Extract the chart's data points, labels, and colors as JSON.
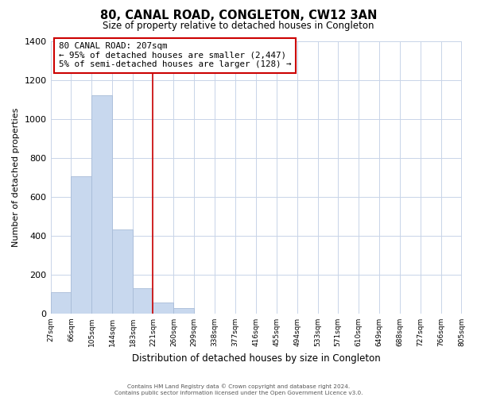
{
  "title": "80, CANAL ROAD, CONGLETON, CW12 3AN",
  "subtitle": "Size of property relative to detached houses in Congleton",
  "xlabel": "Distribution of detached houses by size in Congleton",
  "ylabel": "Number of detached properties",
  "bar_values": [
    110,
    705,
    1120,
    430,
    130,
    55,
    30,
    0,
    0,
    0,
    0,
    0,
    0,
    0,
    0,
    0,
    0,
    0,
    0,
    0
  ],
  "bin_edges": [
    27,
    66,
    105,
    144,
    183,
    221,
    260,
    299,
    338,
    377,
    416,
    455,
    494,
    533,
    571,
    610,
    649,
    688,
    727,
    766,
    805
  ],
  "tick_labels": [
    "27sqm",
    "66sqm",
    "105sqm",
    "144sqm",
    "183sqm",
    "221sqm",
    "260sqm",
    "299sqm",
    "338sqm",
    "377sqm",
    "416sqm",
    "455sqm",
    "494sqm",
    "533sqm",
    "571sqm",
    "610sqm",
    "649sqm",
    "688sqm",
    "727sqm",
    "766sqm",
    "805sqm"
  ],
  "bar_color": "#c8d8ee",
  "bar_edge_color": "#a8bcd8",
  "vline_x": 221,
  "vline_color": "#cc0000",
  "ylim": [
    0,
    1400
  ],
  "yticks": [
    0,
    200,
    400,
    600,
    800,
    1000,
    1200,
    1400
  ],
  "annotation_title": "80 CANAL ROAD: 207sqm",
  "annotation_line1": "← 95% of detached houses are smaller (2,447)",
  "annotation_line2": "5% of semi-detached houses are larger (128) →",
  "footer_line1": "Contains HM Land Registry data © Crown copyright and database right 2024.",
  "footer_line2": "Contains public sector information licensed under the Open Government Licence v3.0.",
  "background_color": "#ffffff",
  "grid_color": "#c8d4e8"
}
